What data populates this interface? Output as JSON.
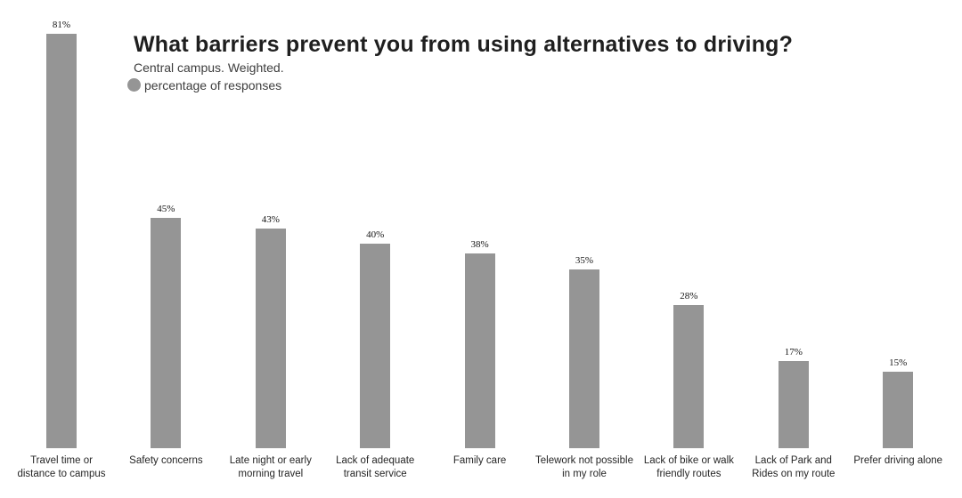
{
  "chart_data": {
    "type": "bar",
    "title": "What barriers prevent you from using alternatives to driving?",
    "subtitle": "Central campus. Weighted.",
    "legend": [
      {
        "label": "percentage of responses",
        "swatch": "circle",
        "color": "#959595"
      }
    ],
    "categories": [
      "Travel time or\ndistance to campus",
      "Safety concerns",
      "Late night or early\nmorning travel",
      "Lack of adequate\ntransit service",
      "Family care",
      "Telework not possible\nin my role",
      "Lack of bike or walk\nfriendly routes",
      "Lack of Park and\nRides on my route",
      "Prefer driving alone"
    ],
    "values": [
      81,
      45,
      43,
      40,
      38,
      35,
      28,
      17,
      15
    ],
    "value_labels": [
      "81%",
      "45%",
      "43%",
      "40%",
      "38%",
      "35%",
      "28%",
      "17%",
      "15%"
    ],
    "unit": "%",
    "ylabel": "",
    "xlabel": "",
    "ylim": [
      0,
      85
    ],
    "grid": false,
    "axis_lines": false,
    "legend_position": "top-left-under-subtitle",
    "bar_color": "#959595",
    "value_label_color": "#141414",
    "background_color": "#ffffff"
  }
}
